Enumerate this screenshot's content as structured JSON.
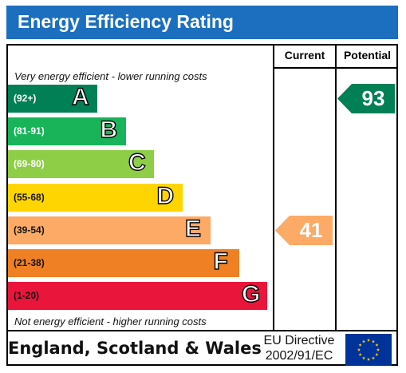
{
  "title": "Energy Efficiency Rating",
  "headers": {
    "current": "Current",
    "potential": "Potential"
  },
  "notes": {
    "top": "Very energy efficient - lower running costs",
    "bottom": "Not energy efficient - higher running costs"
  },
  "chart_data": {
    "type": "bar",
    "categories": [
      "A",
      "B",
      "C",
      "D",
      "E",
      "F",
      "G"
    ],
    "ranges": [
      "(92+)",
      "(81-91)",
      "(69-80)",
      "(55-68)",
      "(39-54)",
      "(21-38)",
      "(1-20)"
    ],
    "colors": [
      "#008054",
      "#19b459",
      "#8dce46",
      "#ffd500",
      "#fcaa65",
      "#ef8023",
      "#e9153b"
    ],
    "current": {
      "value": 41,
      "band": "E",
      "color": "#fcaa65"
    },
    "potential": {
      "value": 93,
      "band": "A",
      "color": "#008054"
    }
  },
  "footer": {
    "region": "England, Scotland & Wales",
    "directive_line1": "EU Directive",
    "directive_line2": "2002/91/EC"
  },
  "flag": {
    "background": "#003399",
    "stars": "#ffcc00",
    "icon": "eu-flag-icon"
  }
}
